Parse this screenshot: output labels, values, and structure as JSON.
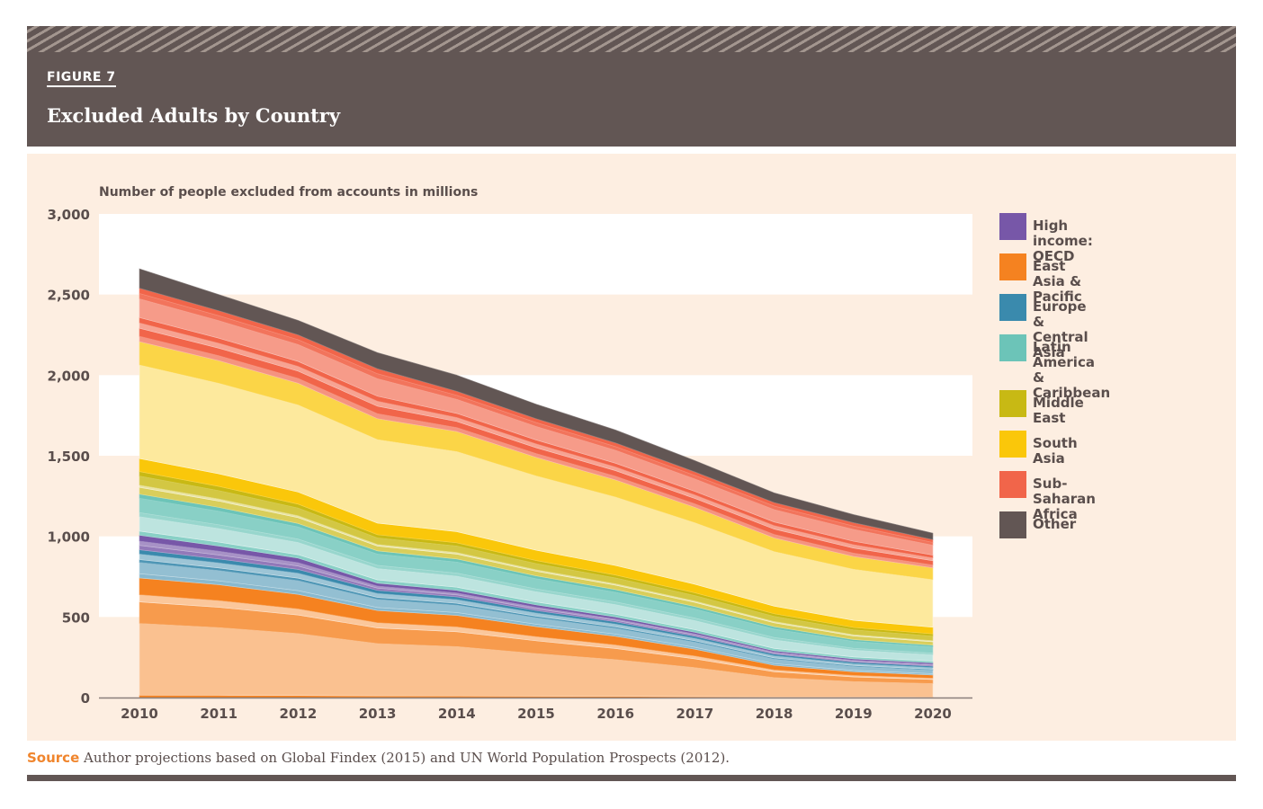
{
  "figure": {
    "label": "FIGURE 7",
    "title": "Excluded Adults by Country"
  },
  "source": {
    "label": "Source",
    "text": "Author projections based on Global Findex (2015) and UN World Population Prospects (2012)."
  },
  "chart_data": {
    "type": "area",
    "stacked": true,
    "title": "Excluded Adults by Country",
    "ylabel": "Number of people excluded from accounts in millions",
    "xlabel": "",
    "x": [
      2010,
      2011,
      2012,
      2013,
      2014,
      2015,
      2016,
      2017,
      2018,
      2019,
      2020
    ],
    "x_tick_labels": [
      "2010",
      "2011",
      "2012",
      "2013",
      "2014",
      "2015",
      "2016",
      "2017",
      "2018",
      "2019",
      "2020"
    ],
    "ylim": [
      0,
      3000
    ],
    "y_ticks": [
      0,
      500,
      1000,
      1500,
      2000,
      2500,
      3000
    ],
    "y_tick_labels": [
      "0",
      "500",
      "1,000",
      "1,500",
      "2,000",
      "2,500",
      "3,000"
    ],
    "background_bands": "alternating white/cream every 500",
    "legend_position": "right",
    "series": [
      {
        "name": "East Asia & Pacific",
        "color": "#f58220",
        "values": [
          742,
          700,
          640,
          540,
          510,
          440,
          380,
          300,
          200,
          160,
          140
        ]
      },
      {
        "name": "Europe & Central Asia",
        "color": "#3a8aad",
        "values": [
          175,
          160,
          155,
          125,
          115,
          100,
          90,
          80,
          70,
          60,
          55
        ]
      },
      {
        "name": "High income: OECD",
        "color": "#7757a8",
        "values": [
          90,
          80,
          70,
          45,
          40,
          35,
          30,
          25,
          20,
          20,
          20
        ]
      },
      {
        "name": "Latin America & Caribbean",
        "color": "#6cc4b8",
        "values": [
          255,
          240,
          215,
          200,
          195,
          180,
          170,
          160,
          150,
          120,
          110
        ]
      },
      {
        "name": "Middle East",
        "color": "#c8b914",
        "values": [
          140,
          130,
          120,
          100,
          100,
          95,
          90,
          85,
          80,
          75,
          70
        ]
      },
      {
        "name": "South Asia",
        "color": "#fac70a",
        "values": [
          806,
          780,
          750,
          720,
          690,
          640,
          590,
          530,
          470,
          440,
          410
        ]
      },
      {
        "name": "Sub-Saharan Africa",
        "color": "#f1654a",
        "values": [
          332,
          310,
          300,
          310,
          250,
          240,
          230,
          220,
          220,
          210,
          175
        ]
      },
      {
        "name": "Other",
        "color": "#625654",
        "values": [
          120,
          100,
          90,
          100,
          100,
          90,
          80,
          70,
          60,
          50,
          40
        ]
      }
    ]
  },
  "legend": [
    {
      "label": "High income: OECD",
      "color": "#7757a8"
    },
    {
      "label": "East Asia & Pacific",
      "color": "#f58220"
    },
    {
      "label": "Europe & Central Asia",
      "color": "#3a8aad"
    },
    {
      "label": "Latin America\n& Caribbean",
      "color": "#6cc4b8"
    },
    {
      "label": "Middle East",
      "color": "#c8b914"
    },
    {
      "label": "South Asia",
      "color": "#fac70a"
    },
    {
      "label": "Sub-Saharan Africa",
      "color": "#f1654a"
    },
    {
      "label": "Other",
      "color": "#625654"
    }
  ]
}
